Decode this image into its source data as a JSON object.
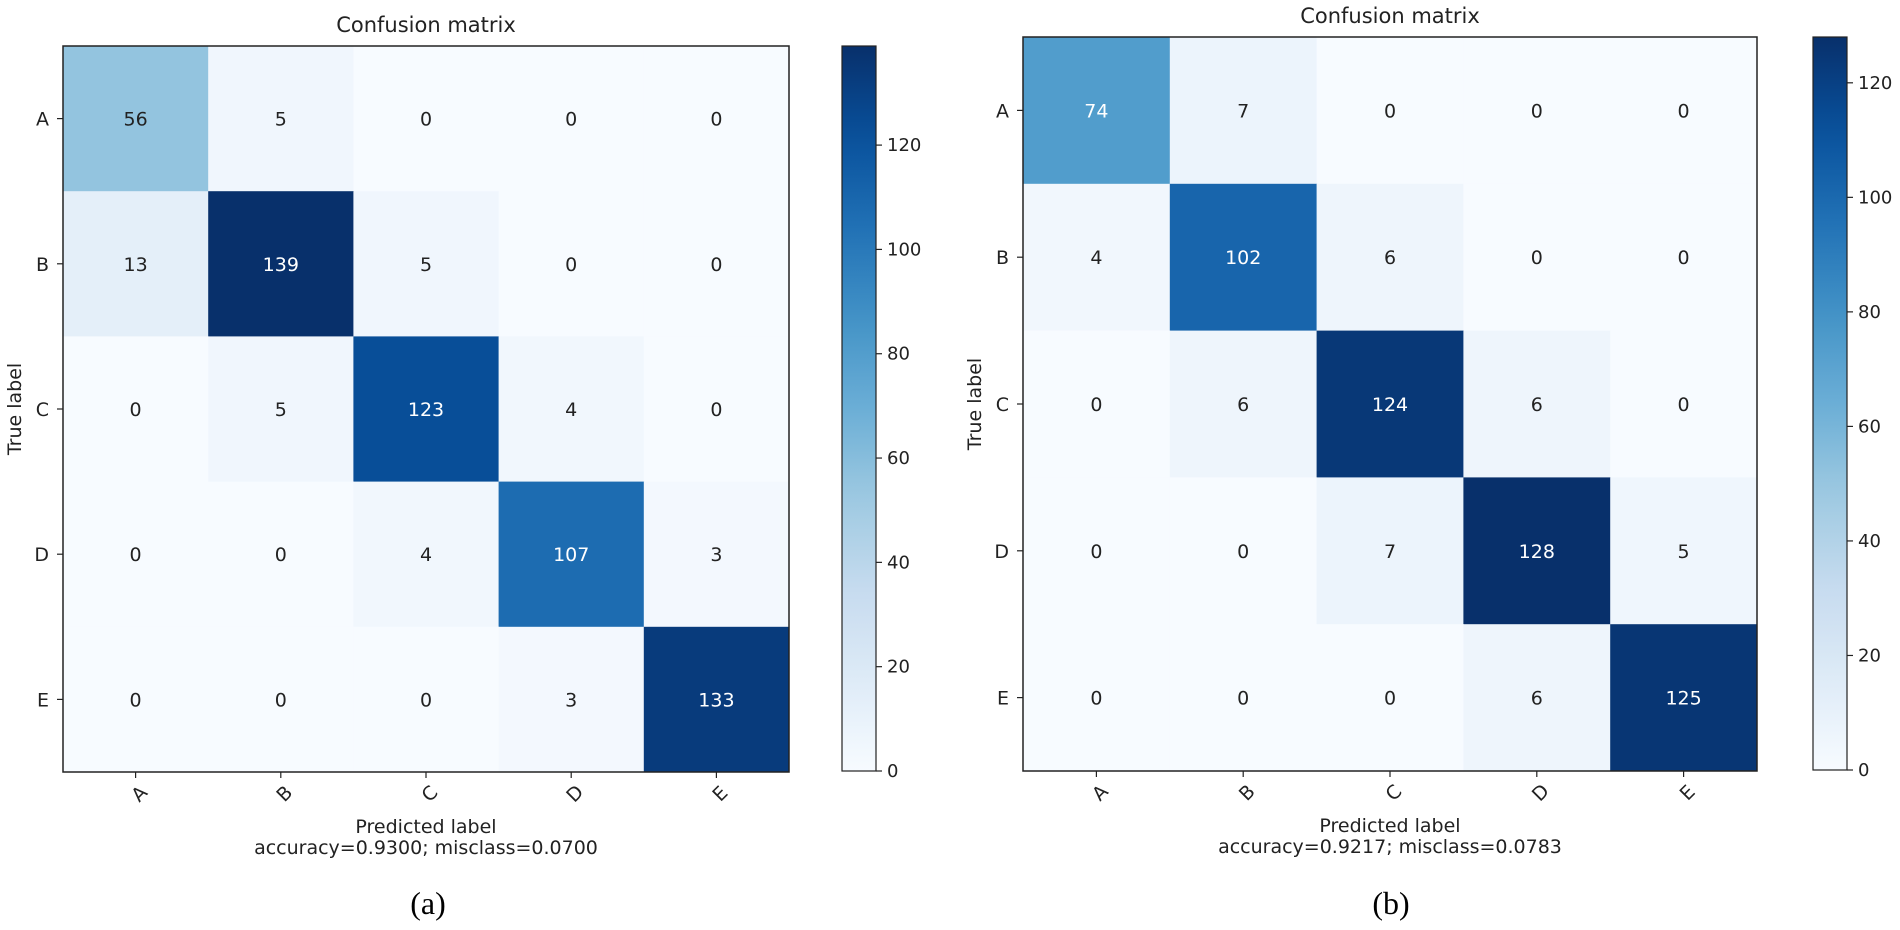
{
  "chart_data": [
    {
      "type": "heatmap",
      "title": "Confusion matrix",
      "xlabel": "Predicted label",
      "ylabel": "True label",
      "subtitle": "accuracy=0.9300; misclass=0.0700",
      "x_categories": [
        "A",
        "B",
        "C",
        "D",
        "E"
      ],
      "y_categories": [
        "A",
        "B",
        "C",
        "D",
        "E"
      ],
      "values": [
        [
          56,
          5,
          0,
          0,
          0
        ],
        [
          13,
          139,
          5,
          0,
          0
        ],
        [
          0,
          5,
          123,
          4,
          0
        ],
        [
          0,
          0,
          4,
          107,
          3
        ],
        [
          0,
          0,
          0,
          3,
          133
        ]
      ],
      "colorbar": {
        "min": 0,
        "max": 139,
        "ticks": [
          0,
          20,
          40,
          60,
          80,
          100,
          120
        ],
        "colormap": "Blues"
      },
      "caption": "(a)"
    },
    {
      "type": "heatmap",
      "title": "Confusion matrix",
      "xlabel": "Predicted label",
      "ylabel": "True label",
      "subtitle": "accuracy=0.9217; misclass=0.0783",
      "x_categories": [
        "A",
        "B",
        "C",
        "D",
        "E"
      ],
      "y_categories": [
        "A",
        "B",
        "C",
        "D",
        "E"
      ],
      "values": [
        [
          74,
          7,
          0,
          0,
          0
        ],
        [
          4,
          102,
          6,
          0,
          0
        ],
        [
          0,
          6,
          124,
          6,
          0
        ],
        [
          0,
          0,
          7,
          128,
          5
        ],
        [
          0,
          0,
          0,
          6,
          125
        ]
      ],
      "colorbar": {
        "min": 0,
        "max": 128,
        "ticks": [
          0,
          20,
          40,
          60,
          80,
          100,
          120
        ],
        "colormap": "Blues"
      },
      "caption": "(b)"
    }
  ]
}
